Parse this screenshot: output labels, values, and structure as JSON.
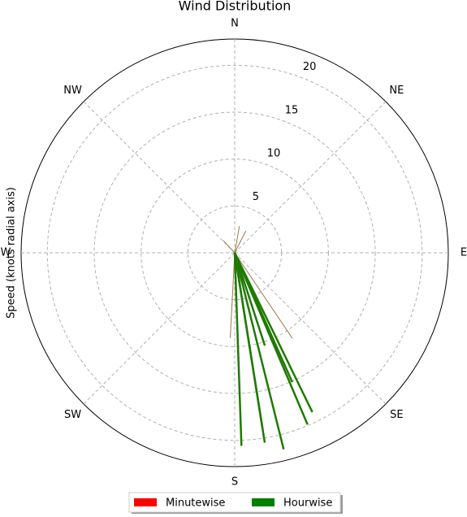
{
  "chart_data": {
    "type": "polar",
    "title": "Wind Distribution",
    "ylabel": "Speed (knots radial axis)",
    "xlim": [
      0,
      360
    ],
    "xticks": [
      {
        "value": 0,
        "label": "N"
      },
      {
        "value": 45,
        "label": "NE"
      },
      {
        "value": 90,
        "label": "E"
      },
      {
        "value": 135,
        "label": "SE"
      },
      {
        "value": 180,
        "label": "S"
      },
      {
        "value": 225,
        "label": "SW"
      },
      {
        "value": 270,
        "label": "W"
      },
      {
        "value": 315,
        "label": "NW"
      }
    ],
    "ylim": [
      0,
      22.8
    ],
    "yticks": [
      5,
      10,
      15,
      20
    ],
    "grid": true,
    "legend": "bottom",
    "series": [
      {
        "name": "Minutewise",
        "color": "#ff0000",
        "line_color": "#9a7a4a",
        "x": [
          10,
          27,
          317,
          183,
          146
        ],
        "values": [
          2.9,
          2.6,
          1.8,
          9.1,
          11.0
        ]
      },
      {
        "name": "Hourwise",
        "color": "#008000",
        "line_color": "#1e7a00",
        "x": [
          178,
          171,
          166,
          154,
          157,
          171,
          162,
          156
        ],
        "values": [
          20.6,
          20.5,
          21.6,
          18.9,
          19.9,
          18.9,
          10.4,
          15.1
        ]
      }
    ]
  }
}
